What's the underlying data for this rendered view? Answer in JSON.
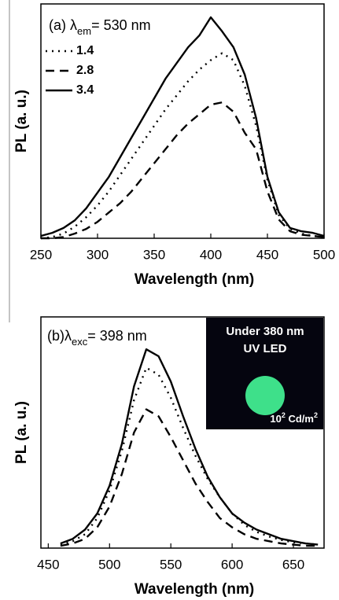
{
  "chart_data": [
    {
      "type": "line",
      "title": {
        "prefix": "(a) λ",
        "subscript": "em",
        "suffix": "= 530 nm"
      },
      "xlabel": "Wavelength (nm)",
      "ylabel": "PL (a. u.)",
      "x": [
        250,
        260,
        270,
        280,
        290,
        300,
        310,
        320,
        330,
        340,
        350,
        360,
        370,
        380,
        390,
        400,
        410,
        420,
        430,
        440,
        450,
        460,
        470,
        480,
        490,
        500
      ],
      "xlim": [
        250,
        500
      ],
      "xticks": [
        250,
        300,
        350,
        400,
        450,
        500
      ],
      "ylim": [
        0,
        100
      ],
      "legend": "upper left",
      "series": [
        {
          "name": "1.4",
          "color": "#000000",
          "dash": "dot",
          "values": [
            0,
            0.5,
            2,
            5,
            9,
            14,
            20,
            27,
            34,
            41,
            48,
            55,
            61,
            67,
            72,
            76,
            79,
            76,
            65,
            48,
            25,
            10,
            4,
            2,
            1,
            0.5
          ]
        },
        {
          "name": "2.8",
          "color": "#000000",
          "dash": "dash",
          "values": [
            0,
            0,
            0.5,
            2,
            4,
            7,
            11,
            15,
            20,
            26,
            32,
            38,
            44,
            49,
            53,
            57,
            58,
            54,
            45,
            38,
            20,
            8,
            3,
            1.5,
            1,
            0.5
          ]
        },
        {
          "name": "3.4",
          "color": "#000000",
          "dash": "solid",
          "values": [
            1,
            2.3,
            4.4,
            7.7,
            12.8,
            19.5,
            26.2,
            34.6,
            43,
            51.3,
            59.7,
            68.1,
            74.8,
            81.5,
            86.6,
            94.3,
            88.3,
            81.5,
            69.8,
            51.3,
            26.2,
            11.1,
            4.4,
            3,
            2.3,
            1
          ]
        }
      ]
    },
    {
      "type": "line",
      "title": {
        "prefix": "(b)λ",
        "subscript": "exc",
        "suffix": "= 398 nm"
      },
      "xlabel": "Wavelength (nm)",
      "ylabel": "PL (a. u.)",
      "x": [
        460,
        470,
        480,
        490,
        500,
        510,
        520,
        530,
        540,
        550,
        560,
        570,
        580,
        590,
        600,
        610,
        620,
        630,
        640,
        650,
        660,
        670
      ],
      "xlim": [
        444,
        675
      ],
      "xticks": [
        450,
        500,
        550,
        600,
        650
      ],
      "ylim": [
        0,
        100
      ],
      "inset": {
        "lines": [
          "Under 380 nm",
          "UV LED"
        ],
        "caption": [
          "10",
          "2",
          " Cd/m",
          "2"
        ],
        "color": "#3ee08a"
      },
      "series": [
        {
          "color": "#000000",
          "dash": "dot",
          "values": [
            1.5,
            3,
            6,
            13,
            25,
            42,
            64,
            78,
            75,
            65,
            52,
            40,
            30,
            22,
            15,
            10,
            7,
            5,
            3.5,
            2.5,
            2,
            1.5
          ]
        },
        {
          "color": "#000000",
          "dash": "dash",
          "values": [
            1,
            2,
            4,
            9,
            18,
            32,
            50,
            60,
            57,
            48,
            38,
            28,
            20,
            13,
            9,
            6,
            4,
            3,
            2,
            1.5,
            1,
            1
          ]
        },
        {
          "color": "#000000",
          "dash": "solid",
          "values": [
            2,
            4,
            8,
            15,
            27,
            45,
            70,
            86,
            83,
            72,
            57,
            43,
            31,
            22,
            15,
            11,
            8,
            6,
            4,
            3,
            2,
            1.5
          ]
        }
      ]
    }
  ]
}
